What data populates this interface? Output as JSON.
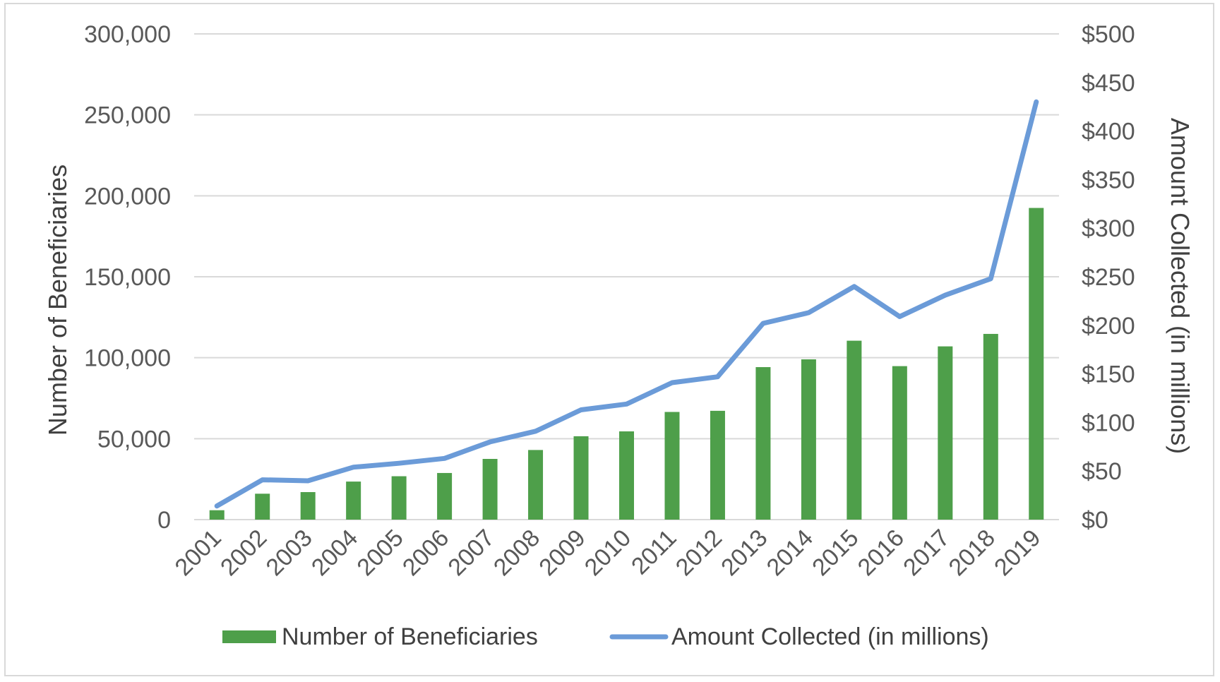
{
  "chart_data": {
    "type": "bar+line",
    "categories": [
      "2001",
      "2002",
      "2003",
      "2004",
      "2005",
      "2006",
      "2007",
      "2008",
      "2009",
      "2010",
      "2011",
      "2012",
      "2013",
      "2014",
      "2015",
      "2016",
      "2017",
      "2018",
      "2019"
    ],
    "series": [
      {
        "name": "Number of Beneficiaries",
        "type": "bar",
        "axis": "left",
        "color": "#4e9f4a",
        "values": [
          5800,
          16000,
          17000,
          23500,
          26800,
          28800,
          37500,
          43000,
          51500,
          54500,
          66500,
          67200,
          94200,
          99000,
          110500,
          94800,
          107000,
          114700,
          192500
        ]
      },
      {
        "name": "Amount Collected (in millions)",
        "type": "line",
        "axis": "right",
        "color": "#6b9bd8",
        "values": [
          14,
          41,
          40,
          54,
          58,
          63,
          80,
          91,
          113,
          119,
          141,
          147,
          202,
          213,
          240,
          209,
          231,
          248,
          430
        ]
      }
    ],
    "left_axis": {
      "title": "Number of Beneficiaries",
      "ylim": [
        0,
        300000
      ],
      "ticks": [
        0,
        50000,
        100000,
        150000,
        200000,
        250000,
        300000
      ],
      "tick_labels": [
        "0",
        "50,000",
        "100,000",
        "150,000",
        "200,000",
        "250,000",
        "300,000"
      ]
    },
    "right_axis": {
      "title": "Amount Collected (in millions)",
      "ylim": [
        0,
        500
      ],
      "ticks": [
        0,
        50,
        100,
        150,
        200,
        250,
        300,
        350,
        400,
        450,
        500
      ],
      "tick_labels": [
        "$0",
        "$50",
        "$100",
        "$150",
        "$200",
        "$250",
        "$300",
        "$350",
        "$400",
        "$450",
        "$500"
      ]
    },
    "grid": true,
    "legend": {
      "position": "bottom",
      "entries": [
        "Number of Beneficiaries",
        "Amount Collected (in millions)"
      ]
    }
  }
}
